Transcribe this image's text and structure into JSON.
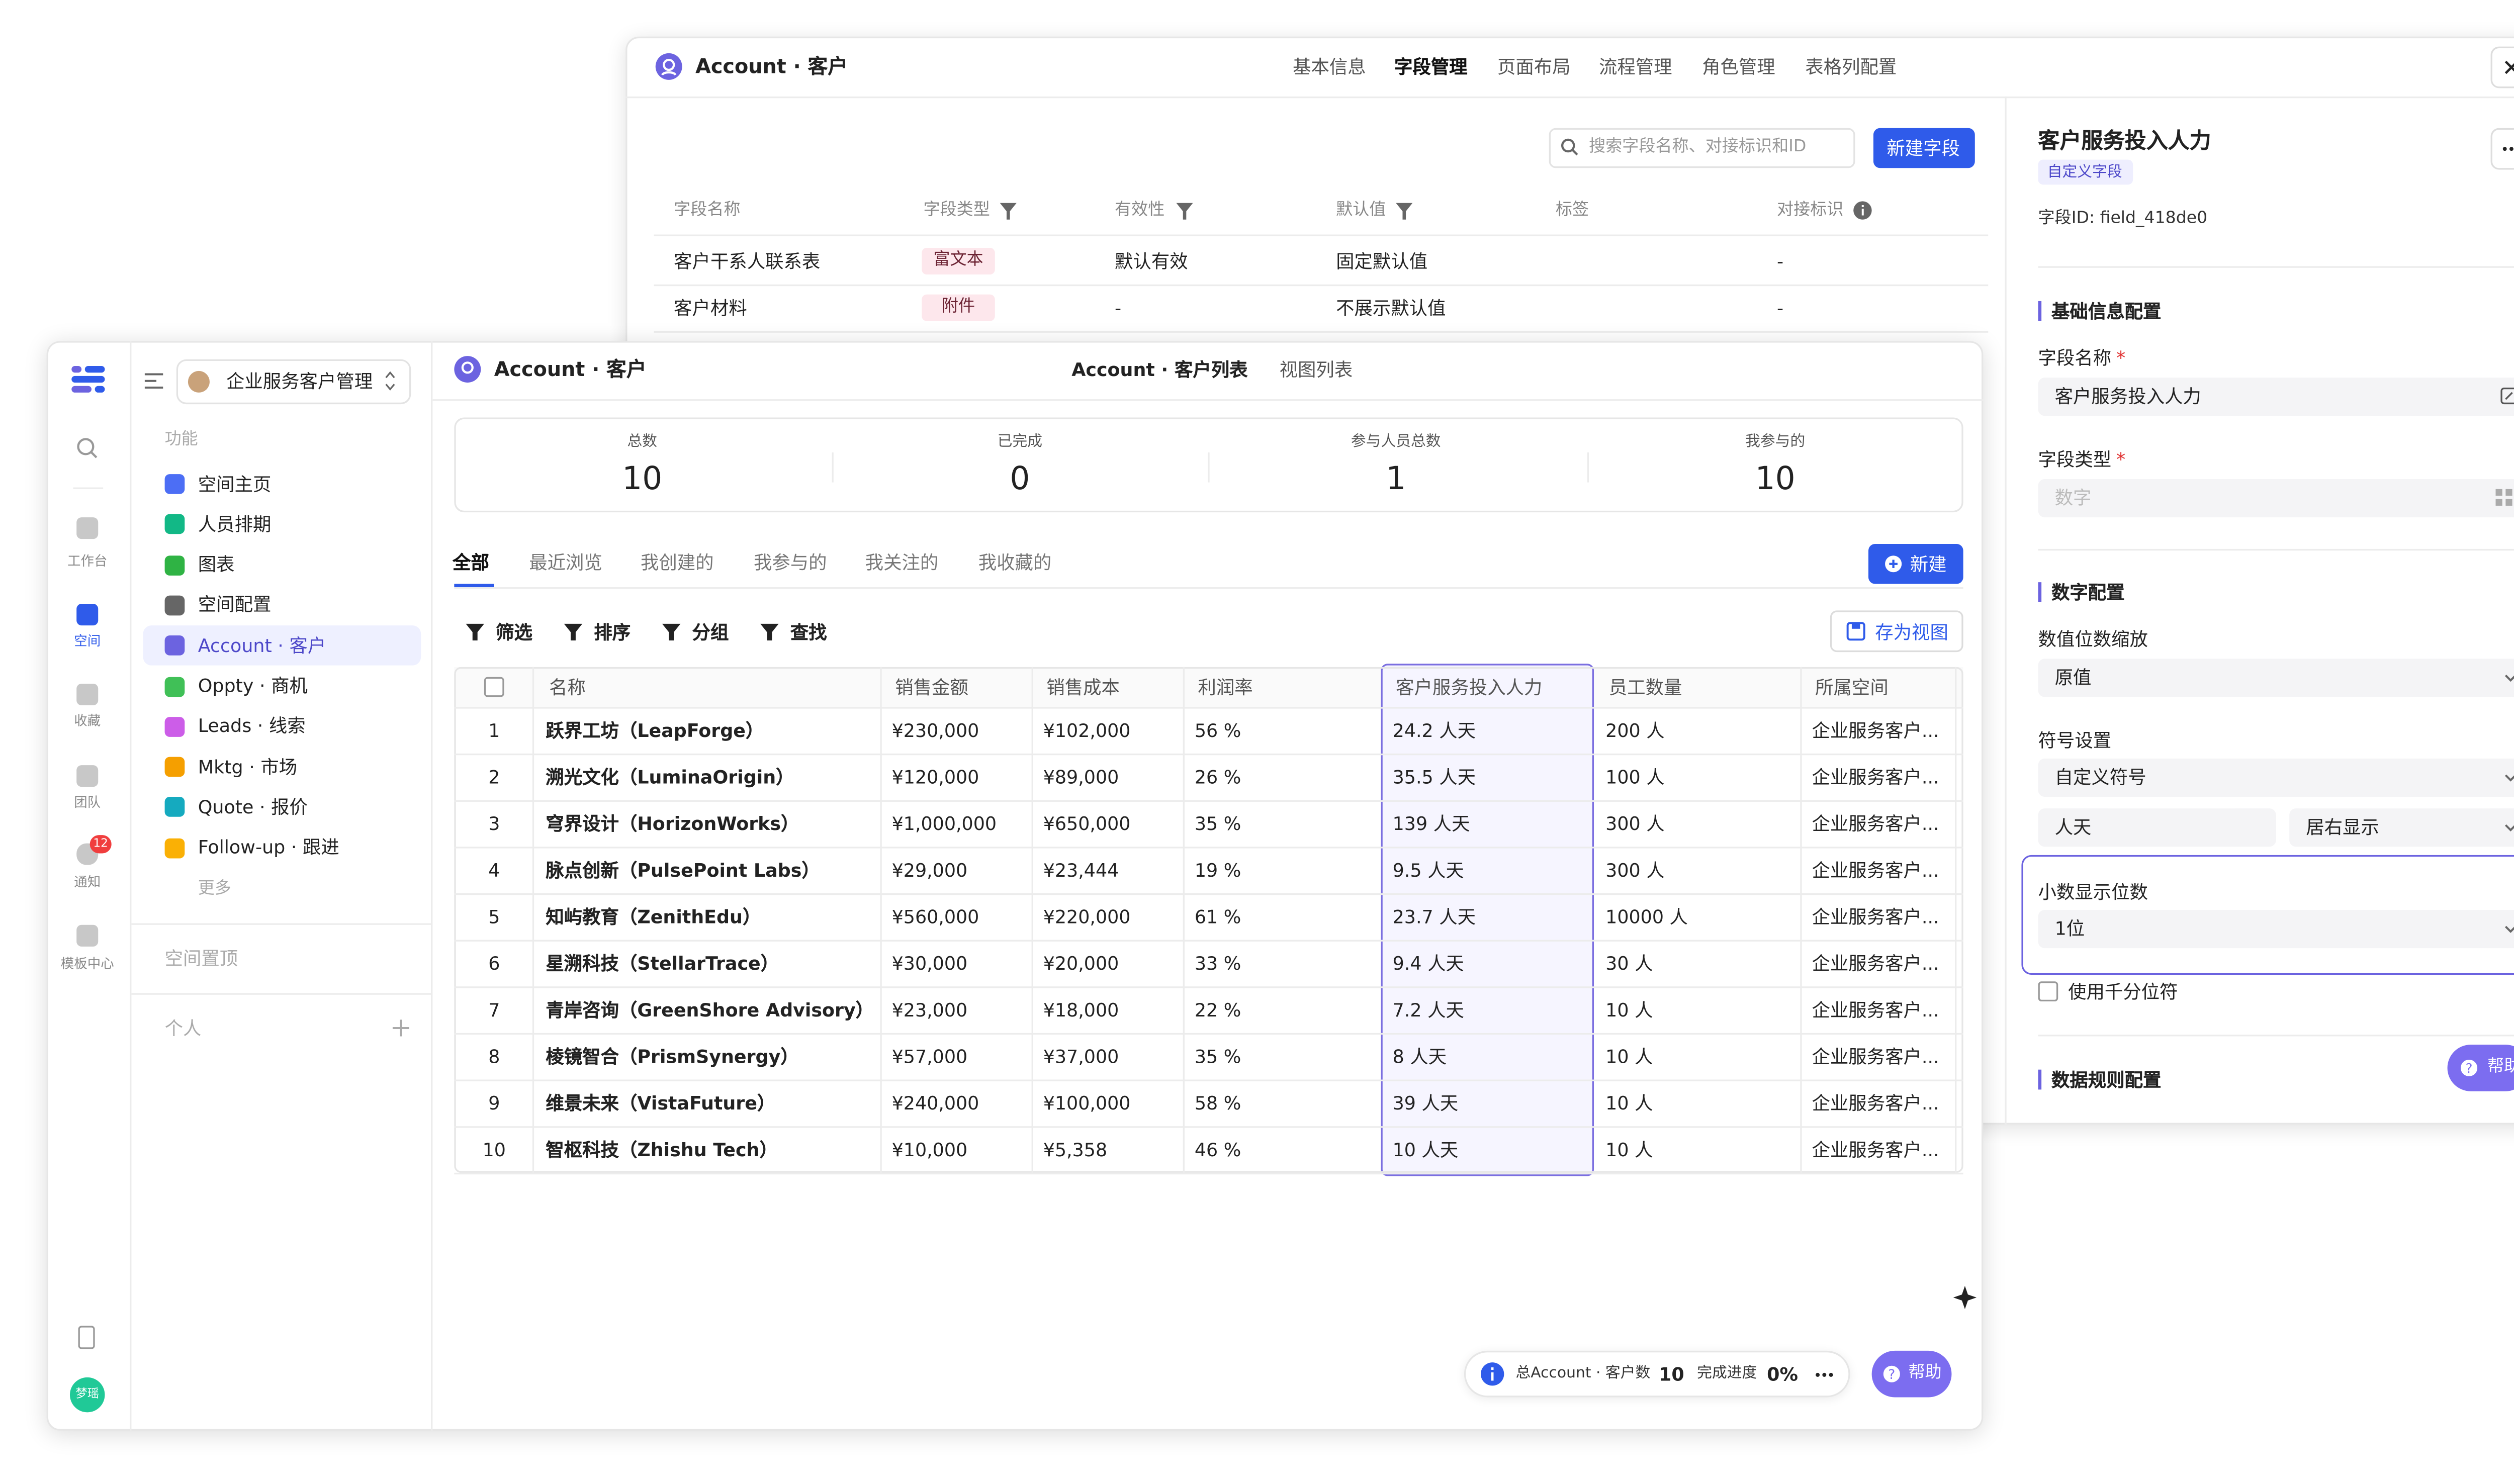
{
  "back_window": {
    "title": "Account · 客户",
    "tabs": [
      "基本信息",
      "字段管理",
      "页面布局",
      "流程管理",
      "角色管理",
      "表格列配置"
    ],
    "search_placeholder": "搜索字段名称、对接标识和ID",
    "new_field_button": "新建字段",
    "field_table": {
      "headers": [
        "字段名称",
        "字段类型",
        "有效性",
        "默认值",
        "标签",
        "对接标识"
      ],
      "rows": [
        {
          "name": "客户干系人联系表",
          "type": "富文本",
          "validity": "默认有效",
          "default": "固定默认值",
          "key": "-"
        },
        {
          "name": "客户材料",
          "type": "附件",
          "validity": "-",
          "default": "不展示默认值",
          "key": "-"
        }
      ]
    }
  },
  "field_panel": {
    "title": "客户服务投入人力",
    "badge": "自定义字段",
    "field_id": "字段ID: field_418de0",
    "basic_section": "基础信息配置",
    "name_label": "字段名称",
    "required_mark": "*",
    "name_value": "客户服务投入人力",
    "type_label": "字段类型",
    "type_value": "数字",
    "number_section": "数字配置",
    "scale_label": "数值位数缩放",
    "scale_value": "原值",
    "symbol_label": "符号设置",
    "symbol_mode": "自定义符号",
    "symbol_text": "人天",
    "symbol_position": "居右显示",
    "decimal_label": "小数显示位数",
    "decimal_value": "1位",
    "thousands_label": "使用千分位符",
    "rules_section": "数据规则配置",
    "help": "帮助"
  },
  "nav_rail": {
    "items": [
      "工作台",
      "空间",
      "收藏",
      "团队",
      "通知",
      "模板中心"
    ],
    "notification_count": 12,
    "avatar": "梦瑶"
  },
  "sidebar": {
    "workspace": "企业服务客户管理",
    "section": "功能",
    "items": [
      "空间主页",
      "人员排期",
      "图表",
      "空间配置",
      "Account · 客户",
      "Oppty · 商机",
      "Leads · 线索",
      "Mktg · 市场",
      "Quote · 报价",
      "Follow-up · 跟进"
    ],
    "more": "更多",
    "pinned": "空间置顶",
    "personal": "个人"
  },
  "main": {
    "title": "Account · 客户",
    "views": [
      "Account · 客户列表",
      "视图列表"
    ],
    "stats": [
      {
        "label": "总数",
        "value": 10
      },
      {
        "label": "已完成",
        "value": 0
      },
      {
        "label": "参与人员总数",
        "value": 1
      },
      {
        "label": "我参与的",
        "value": 10
      }
    ],
    "tabs": [
      "全部",
      "最近浏览",
      "我创建的",
      "我参与的",
      "我关注的",
      "我收藏的"
    ],
    "new_button": "新建",
    "tools": [
      "筛选",
      "排序",
      "分组",
      "查找"
    ],
    "save_view": "存为视图",
    "table": {
      "headers": [
        "名称",
        "销售金额",
        "销售成本",
        "利润率",
        "客户服务投入人力",
        "员工数量",
        "所属空间"
      ],
      "rows": [
        [
          1,
          "跃界工坊（LeapForge）",
          "¥230,000",
          "¥102,000",
          "56 %",
          "24.2 人天",
          "200 人",
          "企业服务客户..."
        ],
        [
          2,
          "溯光文化（LuminaOrigin）",
          "¥120,000",
          "¥89,000",
          "26 %",
          "35.5 人天",
          "100 人",
          "企业服务客户..."
        ],
        [
          3,
          "穹界设计（HorizonWorks）",
          "¥1,000,000",
          "¥650,000",
          "35 %",
          "139 人天",
          "300 人",
          "企业服务客户..."
        ],
        [
          4,
          "脉点创新（PulsePoint Labs）",
          "¥29,000",
          "¥23,444",
          "19 %",
          "9.5 人天",
          "300 人",
          "企业服务客户..."
        ],
        [
          5,
          "知屿教育（ZenithEdu）",
          "¥560,000",
          "¥220,000",
          "61 %",
          "23.7 人天",
          "10000 人",
          "企业服务客户..."
        ],
        [
          6,
          "星溯科技（StellarTrace）",
          "¥30,000",
          "¥20,000",
          "33 %",
          "9.4 人天",
          "30 人",
          "企业服务客户..."
        ],
        [
          7,
          "青岸咨询（GreenShore Advisory）",
          "¥23,000",
          "¥18,000",
          "22 %",
          "7.2 人天",
          "10 人",
          "企业服务客户..."
        ],
        [
          8,
          "棱镜智合（PrismSynergy）",
          "¥57,000",
          "¥37,000",
          "35 %",
          "8 人天",
          "10 人",
          "企业服务客户..."
        ],
        [
          9,
          "维景未来（VistaFuture）",
          "¥240,000",
          "¥100,000",
          "58 %",
          "39 人天",
          "10 人",
          "企业服务客户..."
        ],
        [
          10,
          "智枢科技（Zhishu Tech）",
          "¥10,000",
          "¥5,358",
          "46 %",
          "10 人天",
          "10 人",
          "企业服务客户..."
        ]
      ]
    },
    "footer": {
      "total_label": "总Account · 客户数",
      "total": 10,
      "progress_label": "完成进度",
      "progress": "0%",
      "help": "帮助"
    }
  }
}
